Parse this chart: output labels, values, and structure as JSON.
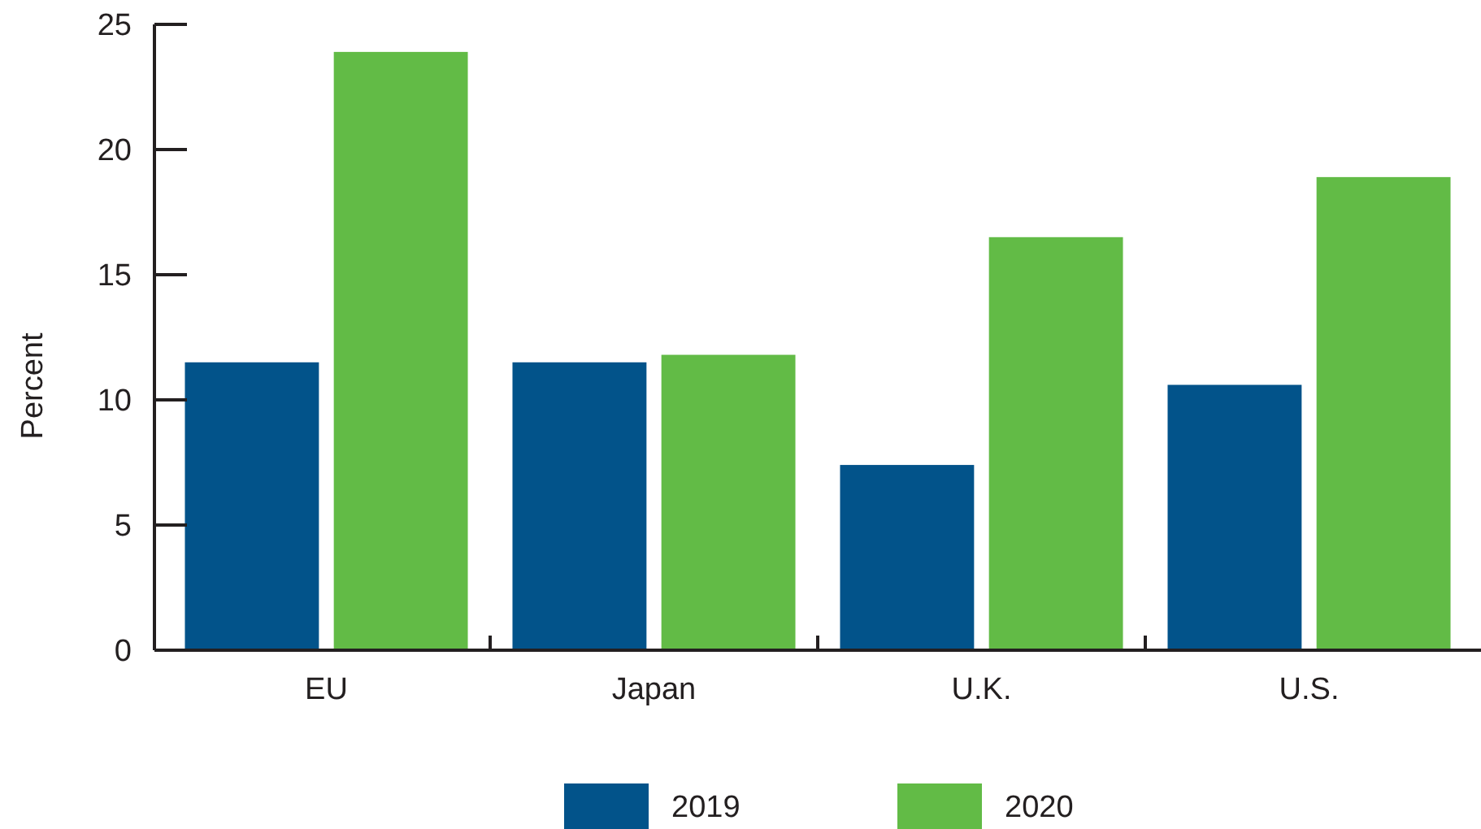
{
  "chart_data": {
    "type": "bar",
    "ylabel": "Percent",
    "categories": [
      "EU",
      "Japan",
      "U.K.",
      "U.S."
    ],
    "series": [
      {
        "name": "2019",
        "color": "#02538a",
        "values": [
          11.5,
          11.5,
          7.4,
          10.6
        ]
      },
      {
        "name": "2020",
        "color": "#62bb46",
        "values": [
          23.9,
          11.8,
          16.5,
          18.9
        ]
      }
    ],
    "ylim": [
      0,
      25
    ],
    "yticks": [
      0,
      5,
      10,
      15,
      20,
      25
    ],
    "grid": false,
    "legend": "bottom"
  }
}
